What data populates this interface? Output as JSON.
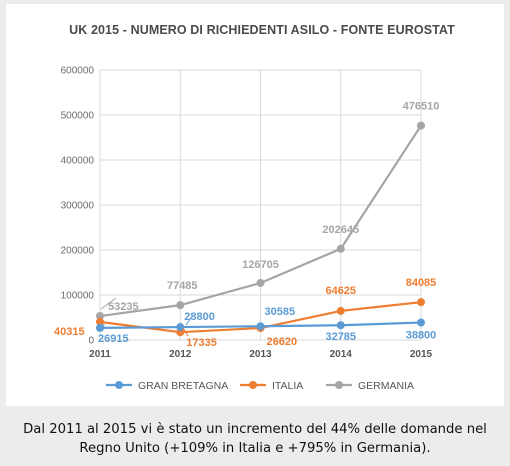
{
  "chart_data": {
    "type": "line",
    "title": "UK 2015 -  NUMERO DI RICHIEDENTI ASILO - FONTE EUROSTAT",
    "x": [
      "2011",
      "2012",
      "2013",
      "2014",
      "2015"
    ],
    "ylim": [
      0,
      600000
    ],
    "yticks": [
      "0",
      "100000",
      "200000",
      "300000",
      "400000",
      "500000",
      "600000"
    ],
    "grid": true,
    "legend_position": "bottom",
    "series": [
      {
        "name": "GRAN BRETAGNA",
        "color": "#5b9bd5",
        "values": [
          26915,
          28800,
          30585,
          32785,
          38800
        ],
        "labels": [
          "26915",
          "28800",
          "30585",
          "32785",
          "38800"
        ]
      },
      {
        "name": "ITALIA",
        "color": "#ed7d31",
        "values": [
          40315,
          17335,
          26620,
          64625,
          84085
        ],
        "labels": [
          "40315",
          "17335",
          "26620",
          "64625",
          "84085"
        ]
      },
      {
        "name": "GERMANIA",
        "color": "#a5a5a5",
        "values": [
          53235,
          77485,
          126705,
          202645,
          476510
        ],
        "labels": [
          "53235",
          "77485",
          "126705",
          "202645",
          "476510"
        ]
      }
    ]
  },
  "caption": {
    "line1": "Dal 2011 al 2015 vi è stato un incremento del 44% delle domande nel",
    "line2": "Regno Unito (+109% in Italia e +795% in Germania)."
  }
}
